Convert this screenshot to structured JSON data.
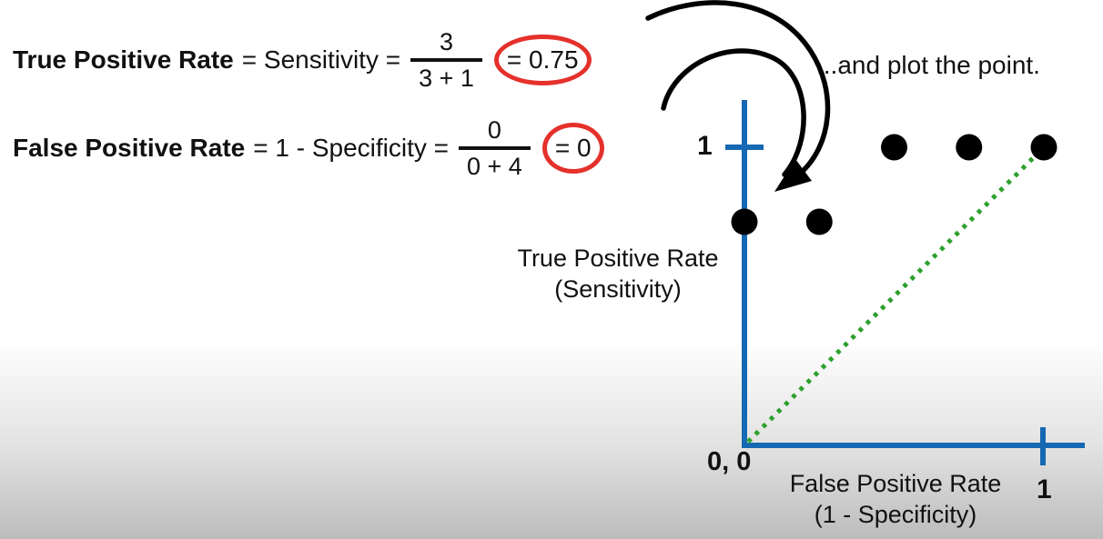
{
  "slide": {
    "annotation": "...and plot the point."
  },
  "formulas": {
    "tpr": {
      "label": "True Positive Rate",
      "mid": "= Sensitivity =",
      "numerator": "3",
      "denominator": "3 + 1",
      "result": "= 0.75"
    },
    "fpr": {
      "label": "False Positive Rate",
      "mid": "= 1 - Specificity =",
      "numerator": "0",
      "denominator": "0 + 4",
      "result": "= 0"
    }
  },
  "chart_data": {
    "type": "scatter",
    "title": "",
    "xlabel": "False Positive Rate",
    "xlabel_sub": "(1 - Specificity)",
    "ylabel": "True Positive Rate",
    "ylabel_sub": "(Sensitivity)",
    "xlim": [
      0,
      1
    ],
    "ylim": [
      0,
      1
    ],
    "x_tick_labels": [
      "1"
    ],
    "y_tick_labels": [
      "1"
    ],
    "origin_label": "0, 0",
    "points": [
      [
        0,
        0.75
      ],
      [
        0.25,
        0.75
      ],
      [
        0.5,
        1
      ],
      [
        0.75,
        1
      ],
      [
        1,
        1
      ]
    ],
    "new_point": [
      0,
      0.75
    ],
    "diagonal": {
      "from": [
        0,
        0
      ],
      "to": [
        1,
        1
      ],
      "style": "dotted"
    },
    "grid": false,
    "legend": false
  },
  "colors": {
    "axis_blue": "#1668b2",
    "diagonal_green": "#2da02d",
    "highlight_red": "#e5312b",
    "point_black": "#000000",
    "arrow_black": "#000000"
  }
}
